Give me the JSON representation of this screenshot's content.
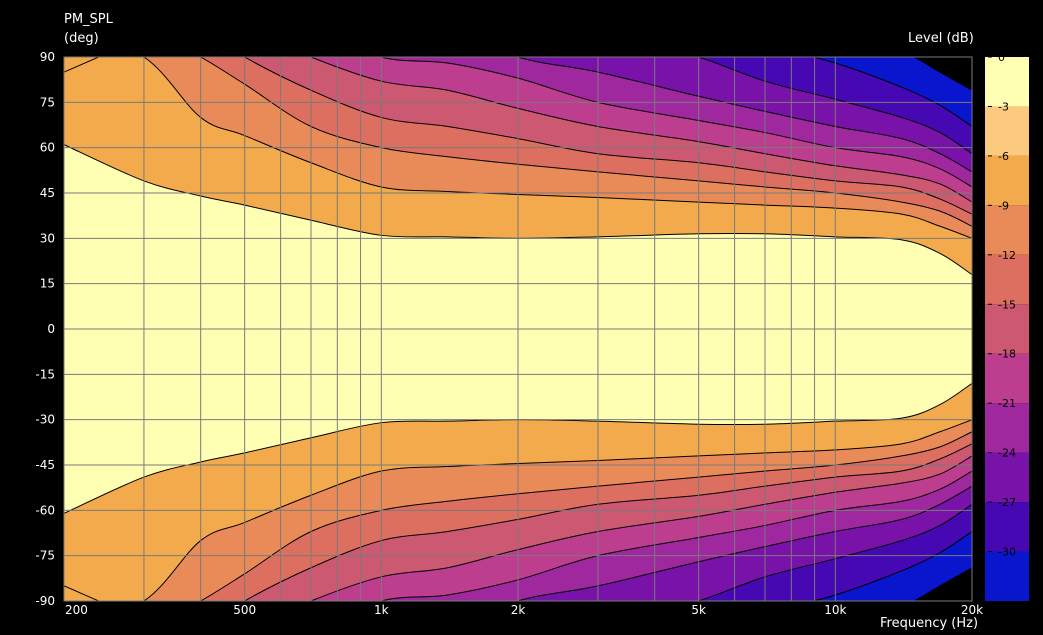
{
  "chart_data": {
    "type": "heatmap",
    "title": "PM_SPL",
    "ylabel": "(deg)",
    "xlabel": "Frequency  (Hz)",
    "colorbar_title": "Level  (dB)",
    "x_scale": "log",
    "xlim": [
      200,
      20000
    ],
    "ylim": [
      -90,
      90
    ],
    "x_ticks": [
      {
        "value": 200,
        "label": "200"
      },
      {
        "value": 500,
        "label": "500"
      },
      {
        "value": 1000,
        "label": "1k"
      },
      {
        "value": 2000,
        "label": "2k"
      },
      {
        "value": 5000,
        "label": "5k"
      },
      {
        "value": 10000,
        "label": "10k"
      },
      {
        "value": 20000,
        "label": "20k"
      }
    ],
    "y_ticks": [
      {
        "value": 90,
        "label": "90"
      },
      {
        "value": 75,
        "label": "75"
      },
      {
        "value": 60,
        "label": "60"
      },
      {
        "value": 45,
        "label": "45"
      },
      {
        "value": 30,
        "label": "30"
      },
      {
        "value": 15,
        "label": "15"
      },
      {
        "value": 0,
        "label": "0"
      },
      {
        "value": -15,
        "label": "-15"
      },
      {
        "value": -30,
        "label": "-30"
      },
      {
        "value": -45,
        "label": "-45"
      },
      {
        "value": -60,
        "label": "-60"
      },
      {
        "value": -75,
        "label": "-75"
      },
      {
        "value": -90,
        "label": "-90"
      }
    ],
    "minor_grid_freqs": [
      300,
      400,
      600,
      700,
      800,
      900,
      3000,
      4000,
      6000,
      7000,
      8000,
      9000
    ],
    "grid": true,
    "colorbar": {
      "range": [
        -30,
        0
      ],
      "tick_labels": [
        {
          "value": 0,
          "label": "0"
        },
        {
          "value": -3,
          "label": "-3"
        },
        {
          "value": -6,
          "label": "-6"
        },
        {
          "value": -9,
          "label": "-9"
        },
        {
          "value": -12,
          "label": "-12"
        },
        {
          "value": -15,
          "label": "-15"
        },
        {
          "value": -18,
          "label": "-18"
        },
        {
          "value": -21,
          "label": "-21"
        },
        {
          "value": -24,
          "label": "-24"
        },
        {
          "value": -27,
          "label": "-27"
        },
        {
          "value": -30,
          "label": "-30"
        }
      ],
      "bands": [
        {
          "from": 0,
          "to": -3,
          "color": "#ffffb4"
        },
        {
          "from": -3,
          "to": -6,
          "color": "#fcca7e"
        },
        {
          "from": -6,
          "to": -9,
          "color": "#f2aa4c"
        },
        {
          "from": -9,
          "to": -12,
          "color": "#e98b58"
        },
        {
          "from": -12,
          "to": -15,
          "color": "#dd6f60"
        },
        {
          "from": -15,
          "to": -18,
          "color": "#cc5872"
        },
        {
          "from": -18,
          "to": -21,
          "color": "#bd3e8f"
        },
        {
          "from": -21,
          "to": -24,
          "color": "#a0289e"
        },
        {
          "from": -24,
          "to": -27,
          "color": "#7812a8"
        },
        {
          "from": -27,
          "to": -30,
          "color": "#4608b2"
        },
        {
          "from": -30,
          "to": -33,
          "color": "#0a16ce"
        }
      ]
    },
    "contour_freqs": [
      200,
      300,
      400,
      500,
      700,
      1000,
      1400,
      2000,
      3000,
      5000,
      7000,
      10000,
      14000,
      17000,
      20000
    ],
    "contour_levels": [
      {
        "level": -3,
        "upper": [
          85,
          96,
          100,
          100,
          100,
          100,
          100,
          100,
          100,
          100,
          100,
          100,
          100,
          100,
          100
        ],
        "lower": [
          -85,
          -96,
          -100,
          -100,
          -100,
          -100,
          -100,
          -100,
          -100,
          -100,
          -100,
          -100,
          -100,
          -100,
          -100
        ]
      },
      {
        "level": -6,
        "upper": [
          61,
          49,
          44,
          41,
          36,
          31,
          30.5,
          30,
          30.5,
          31.5,
          31.5,
          30.5,
          29.5,
          25,
          18
        ],
        "lower": [
          -61,
          -49,
          -44,
          -41,
          -36,
          -31,
          -30.5,
          -30,
          -30.5,
          -31.5,
          -31.5,
          -30.5,
          -29.5,
          -25,
          -18
        ]
      },
      {
        "level": -9,
        "upper": [
          100,
          90,
          70,
          64,
          55,
          47,
          45.5,
          44.5,
          43.5,
          42,
          41,
          40,
          38,
          34,
          30
        ],
        "lower": [
          -100,
          -90,
          -70,
          -64,
          -55,
          -47,
          -45.5,
          -44.5,
          -43.5,
          -42,
          -41,
          -40,
          -38,
          -34,
          -30
        ]
      },
      {
        "level": -12,
        "upper": [
          100,
          100,
          90,
          81,
          67,
          60,
          57,
          54.5,
          52,
          49,
          47,
          45,
          42,
          39,
          34
        ],
        "lower": [
          -100,
          -100,
          -90,
          -81,
          -67,
          -60,
          -57,
          -54.5,
          -52,
          -49,
          -47,
          -45,
          -42,
          -39,
          -34
        ]
      },
      {
        "level": -15,
        "upper": [
          100,
          100,
          100,
          90,
          79,
          70,
          67,
          63,
          58,
          55,
          52,
          49,
          47,
          43,
          38
        ],
        "lower": [
          -100,
          -100,
          -100,
          -90,
          -79,
          -70,
          -67,
          -63,
          -58,
          -55,
          -52,
          -49,
          -47,
          -43,
          -38
        ]
      },
      {
        "level": -18,
        "upper": [
          100,
          100,
          100,
          100,
          90,
          82,
          79,
          73,
          67,
          62,
          58,
          54,
          51,
          48,
          42
        ],
        "lower": [
          -100,
          -100,
          -100,
          -100,
          -90,
          -82,
          -79,
          -73,
          -67,
          -62,
          -58,
          -54,
          -51,
          -48,
          -42
        ]
      },
      {
        "level": -21,
        "upper": [
          100,
          100,
          100,
          100,
          100,
          90,
          88,
          83,
          75,
          69,
          65,
          60,
          57,
          53,
          47
        ],
        "lower": [
          -100,
          -100,
          -100,
          -100,
          -100,
          -90,
          -88,
          -83,
          -75,
          -69,
          -65,
          -60,
          -57,
          -53,
          -47
        ]
      },
      {
        "level": -24,
        "upper": [
          100,
          100,
          100,
          100,
          100,
          100,
          100,
          90,
          85,
          77,
          72,
          67,
          63,
          58,
          52
        ],
        "lower": [
          -100,
          -100,
          -100,
          -100,
          -100,
          -100,
          -100,
          -90,
          -85,
          -77,
          -72,
          -67,
          -63,
          -58,
          -52
        ]
      },
      {
        "level": -27,
        "upper": [
          100,
          100,
          100,
          100,
          100,
          100,
          100,
          100,
          100,
          90,
          82,
          76,
          70,
          65,
          58
        ],
        "lower": [
          -100,
          -100,
          -100,
          -100,
          -100,
          -100,
          -100,
          -100,
          -100,
          -90,
          -82,
          -76,
          -70,
          -65,
          -58
        ]
      },
      {
        "level": -30,
        "upper": [
          100,
          100,
          100,
          100,
          100,
          100,
          100,
          100,
          100,
          100,
          94,
          88,
          80,
          74,
          67
        ],
        "lower": [
          -100,
          -100,
          -100,
          -100,
          -100,
          -100,
          -100,
          -100,
          -100,
          -100,
          -94,
          -88,
          -80,
          -74,
          -67
        ]
      },
      {
        "level": -33,
        "upper": [
          100,
          100,
          100,
          100,
          100,
          100,
          100,
          100,
          100,
          100,
          100,
          100,
          92,
          85,
          79
        ],
        "lower": [
          -100,
          -100,
          -100,
          -100,
          -100,
          -100,
          -100,
          -100,
          -100,
          -100,
          -100,
          -100,
          -92,
          -85,
          -79
        ]
      }
    ]
  }
}
